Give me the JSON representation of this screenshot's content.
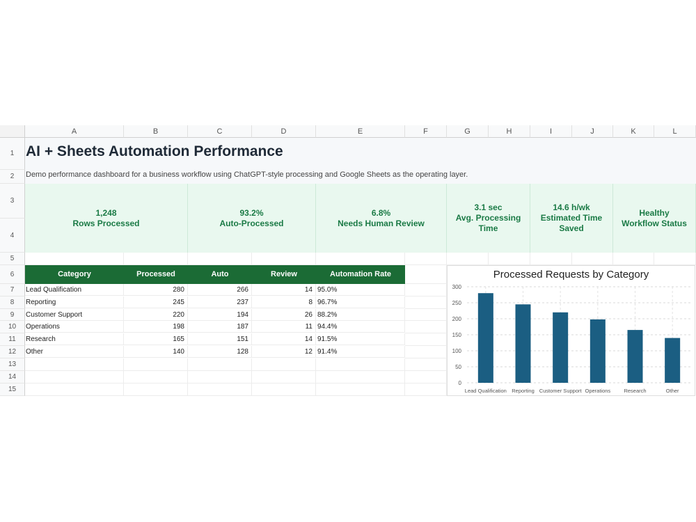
{
  "sheet": {
    "columns": [
      "A",
      "B",
      "C",
      "D",
      "E",
      "F",
      "G",
      "H",
      "I",
      "J",
      "K",
      "L"
    ],
    "rows": [
      "1",
      "2",
      "3",
      "4",
      "5",
      "6",
      "7",
      "8",
      "9",
      "10",
      "11",
      "12",
      "13",
      "14",
      "15"
    ],
    "title": "AI + Sheets Automation Performance",
    "subtitle": "Demo performance dashboard for a business workflow using ChatGPT-style processing and Google Sheets as the operating layer."
  },
  "kpis": [
    {
      "value": "1,248",
      "label": "Rows Processed"
    },
    {
      "value": "93.2%",
      "label": "Auto-Processed"
    },
    {
      "value": "6.8%",
      "label": "Needs Human Review"
    },
    {
      "value": "3.1 sec",
      "label": "Avg. Processing Time"
    },
    {
      "value": "14.6 h/wk",
      "label": "Estimated Time Saved"
    },
    {
      "value": "Healthy",
      "label": "Workflow Status"
    }
  ],
  "table": {
    "headers": [
      "Category",
      "Processed",
      "Auto",
      "Review",
      "Automation Rate"
    ],
    "rows": [
      [
        "Lead Qualification",
        "280",
        "266",
        "14",
        "95.0%"
      ],
      [
        "Reporting",
        "245",
        "237",
        "8",
        "96.7%"
      ],
      [
        "Customer Support",
        "220",
        "194",
        "26",
        "88.2%"
      ],
      [
        "Operations",
        "198",
        "187",
        "11",
        "94.4%"
      ],
      [
        "Research",
        "165",
        "151",
        "14",
        "91.5%"
      ],
      [
        "Other",
        "140",
        "128",
        "12",
        "91.4%"
      ]
    ],
    "header_color": "#1b6b35"
  },
  "colors": {
    "kpi_bg": "#e9f8ef",
    "kpi_text": "#1a7a45",
    "bar": "#1b5e82"
  },
  "chart_data": {
    "type": "bar",
    "title": "Processed Requests by Category",
    "categories": [
      "Lead Qualification",
      "Reporting",
      "Customer Support",
      "Operations",
      "Research",
      "Other"
    ],
    "values": [
      280,
      245,
      220,
      198,
      165,
      140
    ],
    "yticks": [
      "0",
      "50",
      "100",
      "150",
      "200",
      "250",
      "300"
    ],
    "ylim": [
      0,
      300
    ],
    "grid": true
  }
}
